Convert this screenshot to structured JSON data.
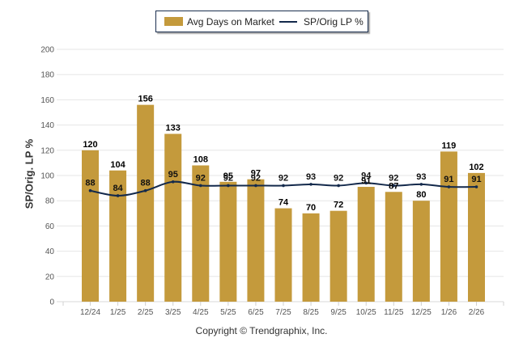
{
  "chart_data": {
    "type": "bar",
    "categories": [
      "12/24",
      "1/25",
      "2/25",
      "3/25",
      "4/25",
      "5/25",
      "6/25",
      "7/25",
      "8/25",
      "9/25",
      "10/25",
      "11/25",
      "12/25",
      "1/26",
      "2/26"
    ],
    "series": [
      {
        "name": "Avg Days on Market",
        "type": "bar",
        "color": "#c49a3c",
        "values": [
          120,
          104,
          156,
          133,
          108,
          95,
          97,
          74,
          70,
          72,
          91,
          87,
          80,
          119,
          102
        ]
      },
      {
        "name": "SP/Orig LP %",
        "type": "line",
        "color": "#13294b",
        "values": [
          88,
          84,
          88,
          95,
          92,
          92,
          92,
          92,
          93,
          92,
          94,
          92,
          93,
          91,
          91
        ]
      }
    ],
    "ylabel": "SP/Orig. LP %",
    "xlabel": "",
    "ylim": [
      0,
      200
    ],
    "yticks": [
      0,
      20,
      40,
      60,
      80,
      100,
      120,
      140,
      160,
      180,
      200
    ],
    "grid": true,
    "legend_position": "top-center"
  },
  "legend": {
    "bars_label": "Avg Days on Market",
    "line_label": "SP/Orig LP %"
  },
  "footer": {
    "copyright": "Copyright © Trendgraphix, Inc."
  }
}
